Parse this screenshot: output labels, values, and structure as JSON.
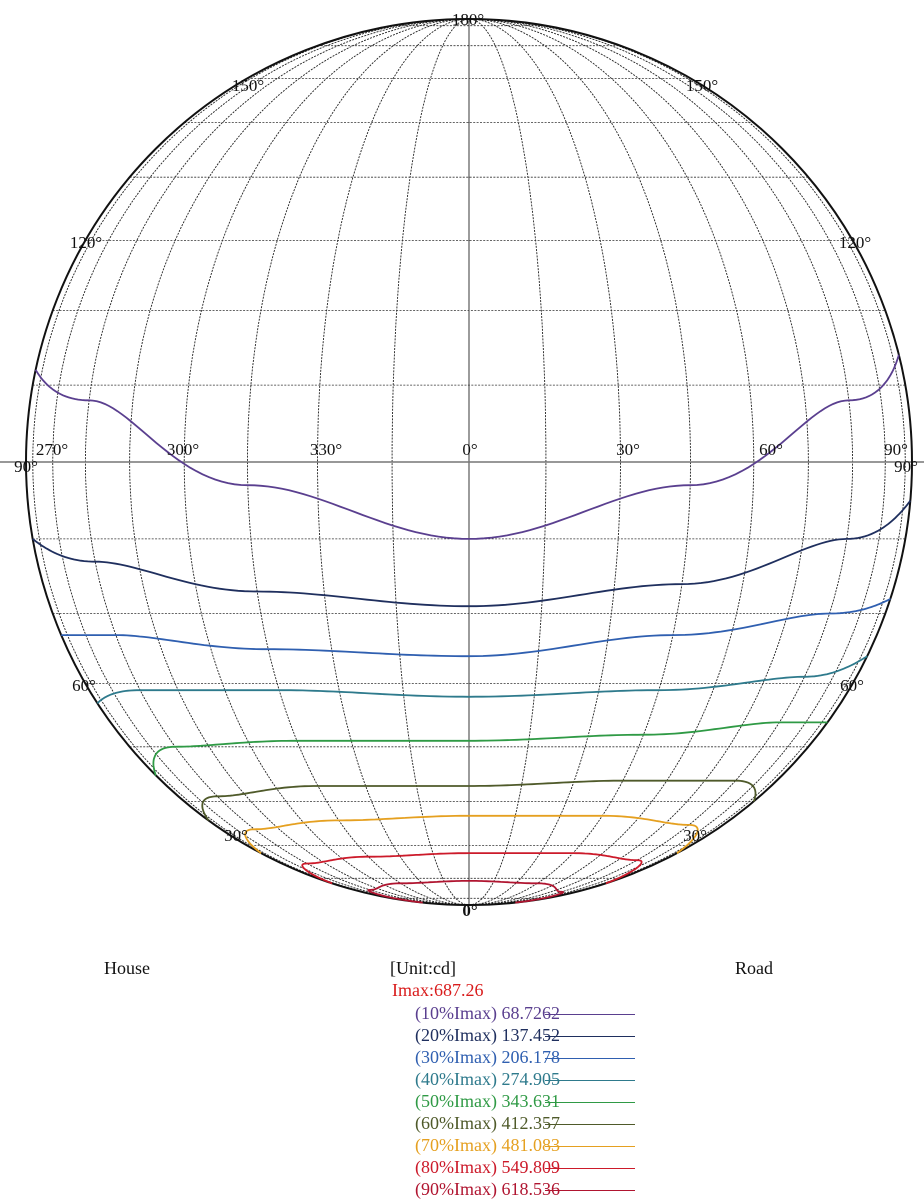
{
  "chart_data": {
    "type": "polar isolux / isocandela diagram",
    "meridian_labels": {
      "top": "180°",
      "bottom": "0°",
      "center": "0°",
      "left_pair": [
        "270°",
        "90°"
      ],
      "right_pair": [
        "90°",
        "90°"
      ],
      "equator": [
        "300°",
        "330°",
        "30°",
        "60°"
      ],
      "upper_150": "150°",
      "upper_120": "120°",
      "lower_60": "60°",
      "lower_30": "30°"
    },
    "grid_step_deg": 10,
    "labels": {
      "left_side": "House",
      "right_side": "Road",
      "unit": "[Unit:cd]",
      "imax": "Imax:687.26"
    },
    "imax": 687.26,
    "series": [
      {
        "name": "(10%Imax) 68.7262",
        "fraction": 0.1,
        "value": 68.7262,
        "color": "#5a3f8f",
        "points": [
          [
            -90,
            12
          ],
          [
            -60,
            8
          ],
          [
            -30,
            -3
          ],
          [
            0,
            -10
          ],
          [
            30,
            -3
          ],
          [
            60,
            8
          ],
          [
            90,
            14
          ]
        ]
      },
      {
        "name": "(20%Imax) 137.452",
        "fraction": 0.2,
        "value": 137.452,
        "color": "#1f2f5e",
        "points": [
          [
            -90,
            -10
          ],
          [
            -60,
            -13
          ],
          [
            -30,
            -17
          ],
          [
            0,
            -19
          ],
          [
            30,
            -16
          ],
          [
            60,
            -10
          ],
          [
            90,
            -5
          ]
        ]
      },
      {
        "name": "(30%Imax) 206.178",
        "fraction": 0.3,
        "value": 206.178,
        "color": "#2f5fb0",
        "points": [
          [
            -90,
            -23
          ],
          [
            -60,
            -23
          ],
          [
            -30,
            -25
          ],
          [
            0,
            -26
          ],
          [
            30,
            -23
          ],
          [
            60,
            -20
          ],
          [
            90,
            -18
          ]
        ]
      },
      {
        "name": "(40%Imax) 274.905",
        "fraction": 0.4,
        "value": 274.905,
        "color": "#2e7a8c",
        "points": [
          [
            -90,
            -33
          ],
          [
            -60,
            -31
          ],
          [
            -30,
            -31
          ],
          [
            0,
            -32
          ],
          [
            30,
            -31
          ],
          [
            60,
            -29
          ],
          [
            90,
            -26
          ]
        ]
      },
      {
        "name": "(50%Imax) 343.631",
        "fraction": 0.5,
        "value": 343.631,
        "color": "#2f9a45",
        "points": [
          [
            -90,
            -45
          ],
          [
            -60,
            -40
          ],
          [
            -30,
            -39
          ],
          [
            0,
            -39
          ],
          [
            30,
            -38
          ],
          [
            60,
            -36
          ],
          [
            90,
            -36
          ]
        ]
      },
      {
        "name": "(60%Imax) 412.357",
        "fraction": 0.6,
        "value": 412.357,
        "color": "#4f5a2a",
        "points": [
          [
            -90,
            -54
          ],
          [
            -60,
            -49
          ],
          [
            -30,
            -47
          ],
          [
            0,
            -47
          ],
          [
            30,
            -46
          ],
          [
            60,
            -46
          ],
          [
            90,
            -50
          ]
        ]
      },
      {
        "name": "(70%Imax) 481.083",
        "fraction": 0.7,
        "value": 481.083,
        "color": "#e5a020",
        "points": [
          [
            -90,
            -62
          ],
          [
            -60,
            -56
          ],
          [
            -30,
            -54
          ],
          [
            0,
            -53
          ],
          [
            30,
            -53
          ],
          [
            60,
            -55
          ],
          [
            90,
            -62
          ]
        ]
      },
      {
        "name": "(80%Imax) 549.809",
        "fraction": 0.8,
        "value": 549.809,
        "color": "#cc1a2a",
        "points": [
          [
            -90,
            -72
          ],
          [
            -60,
            -65
          ],
          [
            -30,
            -63
          ],
          [
            0,
            -62
          ],
          [
            30,
            -62
          ],
          [
            60,
            -64
          ],
          [
            90,
            -72
          ]
        ]
      },
      {
        "name": "(90%Imax) 618.536",
        "fraction": 0.9,
        "value": 618.536,
        "color": "#b01530",
        "points": [
          [
            -90,
            -84
          ],
          [
            -60,
            -75
          ],
          [
            -30,
            -72
          ],
          [
            0,
            -71
          ],
          [
            30,
            -72
          ],
          [
            60,
            -76
          ],
          [
            90,
            -84
          ]
        ]
      }
    ]
  }
}
